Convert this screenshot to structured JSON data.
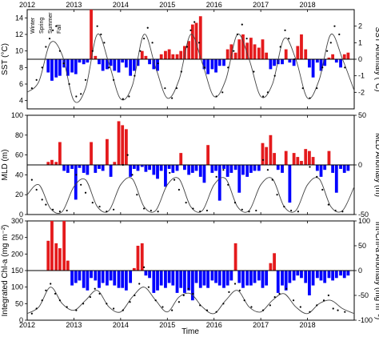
{
  "figure": {
    "x_axis_label": "Time",
    "top_year_labels": [
      "2012",
      "2013",
      "2014",
      "2015",
      "2016",
      "2017",
      "2018"
    ],
    "bottom_year_labels": [
      "2012",
      "2013",
      "2014",
      "2015",
      "2016",
      "2017",
      "2018"
    ],
    "season_labels": [
      "Winter",
      "Spring",
      "Summer",
      "Fall"
    ]
  },
  "chart_data": [
    {
      "type": "bar",
      "panel": "SST",
      "left_ylabel": "SST (°C)",
      "right_ylabel": "SST Anomaly (°C)",
      "left_ylim": [
        3,
        15
      ],
      "left_ticks": [
        4,
        6,
        8,
        10,
        12,
        14
      ],
      "right_ylim": [
        -3,
        3
      ],
      "right_ticks": [
        -2,
        -1,
        0,
        1,
        2
      ],
      "xlim": [
        2012,
        2019
      ],
      "colors": {
        "positive": "#e41a1c",
        "negative": "#0000ff",
        "climatology": "#444444",
        "points": "#000000"
      },
      "anomaly_bars": {
        "x": [
          2012.45,
          2012.53,
          2012.62,
          2012.7,
          2012.79,
          2012.87,
          2012.96,
          2013.04,
          2013.12,
          2013.21,
          2013.29,
          2013.37,
          2013.46,
          2013.54,
          2013.62,
          2013.71,
          2013.79,
          2013.87,
          2013.96,
          2014.04,
          2014.12,
          2014.21,
          2014.29,
          2014.37,
          2014.46,
          2014.54,
          2014.62,
          2014.71,
          2014.79,
          2014.87,
          2014.96,
          2015.04,
          2015.12,
          2015.21,
          2015.29,
          2015.37,
          2015.46,
          2015.54,
          2015.62,
          2015.71,
          2015.79,
          2015.87,
          2015.96,
          2016.04,
          2016.12,
          2016.21,
          2016.29,
          2016.37,
          2016.46,
          2016.54,
          2016.62,
          2016.71,
          2016.79,
          2016.87,
          2016.96,
          2017.04,
          2017.12,
          2017.21,
          2017.29,
          2017.37,
          2017.46,
          2017.54,
          2017.62,
          2017.71,
          2017.79,
          2017.87,
          2017.96,
          2018.04,
          2018.12,
          2018.21,
          2018.29,
          2018.37,
          2018.46,
          2018.54,
          2018.62,
          2018.71,
          2018.79,
          2018.87
        ],
        "values": [
          -0.8,
          -1.3,
          -1.1,
          -1.0,
          -0.5,
          -1.0,
          -0.8,
          -0.9,
          -0.2,
          -0.3,
          -0.2,
          3.0,
          0.2,
          -0.3,
          -0.7,
          -0.6,
          -0.4,
          -0.7,
          -0.8,
          -0.2,
          -0.5,
          -1.0,
          -0.7,
          -0.4,
          0.5,
          0.2,
          -0.3,
          -0.6,
          -0.7,
          0.3,
          0.5,
          0.6,
          0.3,
          0.3,
          0.5,
          0.8,
          1.1,
          2.1,
          2.2,
          2.6,
          -0.6,
          -0.9,
          -0.6,
          -0.8,
          -0.4,
          -0.4,
          0.6,
          0.9,
          0.4,
          1.2,
          1.5,
          1.0,
          1.3,
          0.9,
          0.7,
          1.2,
          0.4,
          -0.6,
          -0.4,
          -0.3,
          -0.3,
          0.6,
          -0.2,
          -0.4,
          0.8,
          1.5,
          0.6,
          -0.5,
          -1.1,
          -0.2,
          -0.7,
          -0.4,
          0.1,
          0.3,
          -0.2,
          -0.5,
          0.3,
          0.4
        ]
      },
      "climatology": {
        "x": [
          2012.0,
          2012.25,
          2012.5,
          2012.75,
          2013.0,
          2013.25,
          2013.5,
          2013.75,
          2014.0,
          2014.25,
          2014.5,
          2014.75,
          2015.0,
          2015.25,
          2015.5,
          2015.75,
          2016.0,
          2016.25,
          2016.5,
          2016.75,
          2017.0,
          2017.25,
          2017.5,
          2017.75,
          2018.0,
          2018.25,
          2018.5,
          2018.75,
          2019.0
        ],
        "values": [
          5.0,
          6.3,
          11.0,
          9.5,
          4.0,
          5.5,
          12.0,
          8.5,
          4.2,
          5.8,
          12.0,
          8.0,
          4.3,
          6.5,
          12.0,
          8.5,
          4.5,
          6.5,
          12.0,
          9.0,
          4.5,
          6.0,
          11.5,
          9.0,
          4.3,
          6.5,
          12.0,
          9.0,
          5.2
        ]
      },
      "observations": {
        "x": [
          2012.1,
          2012.2,
          2012.32,
          2012.4,
          2012.48,
          2012.55,
          2012.62,
          2012.7,
          2012.78,
          2012.9,
          2013.05,
          2013.15,
          2013.25,
          2013.4,
          2013.5,
          2013.58,
          2013.65,
          2013.75,
          2013.85,
          2014.05,
          2014.18,
          2014.3,
          2014.42,
          2014.5,
          2014.58,
          2014.68,
          2014.8,
          2014.95,
          2015.1,
          2015.2,
          2015.3,
          2015.42,
          2015.5,
          2015.58,
          2015.68,
          2015.8,
          2016.05,
          2016.18,
          2016.3,
          2016.42,
          2016.5,
          2016.6,
          2016.7,
          2016.85,
          2017.05,
          2017.15,
          2017.3,
          2017.42,
          2017.52,
          2017.6,
          2017.72,
          2017.9,
          2018.05,
          2018.2,
          2018.32,
          2018.42,
          2018.5,
          2018.58,
          2018.68,
          2018.8
        ],
        "values": [
          5.5,
          6.5,
          8.0,
          10.5,
          11.5,
          12.5,
          13.0,
          10.0,
          8.5,
          6.0,
          4.5,
          4.8,
          6.5,
          10.0,
          13.0,
          12.0,
          11.0,
          8.0,
          6.5,
          4.2,
          4.5,
          7.0,
          10.0,
          11.5,
          12.8,
          11.0,
          8.5,
          5.5,
          4.3,
          5.5,
          7.5,
          10.5,
          12.5,
          13.5,
          11.0,
          8.0,
          4.5,
          5.0,
          8.0,
          10.0,
          12.0,
          13.2,
          11.5,
          7.5,
          4.5,
          5.0,
          7.0,
          10.5,
          12.5,
          11.5,
          9.0,
          5.5,
          4.3,
          5.5,
          8.0,
          10.0,
          11.0,
          13.0,
          12.0,
          8.0
        ]
      }
    },
    {
      "type": "bar",
      "panel": "MLD",
      "left_ylabel": "MLD (m)",
      "right_ylabel": "MLD Anomaly (m)",
      "left_ylim": [
        0,
        100
      ],
      "left_ticks": [
        0,
        20,
        40,
        60,
        80,
        100
      ],
      "right_ylim": [
        -50,
        50
      ],
      "right_ticks": [
        -50,
        0,
        50
      ],
      "xlim": [
        2012,
        2019
      ],
      "colors": {
        "positive": "#e41a1c",
        "negative": "#0000ff",
        "climatology": "#444444",
        "points": "#000000"
      },
      "anomaly_bars": {
        "x": [
          2012.45,
          2012.53,
          2012.62,
          2012.7,
          2012.79,
          2012.87,
          2012.96,
          2013.04,
          2013.12,
          2013.21,
          2013.29,
          2013.37,
          2013.46,
          2013.54,
          2013.62,
          2013.71,
          2013.79,
          2013.87,
          2013.96,
          2014.04,
          2014.12,
          2014.21,
          2014.29,
          2014.37,
          2014.46,
          2014.54,
          2014.62,
          2014.71,
          2014.79,
          2014.87,
          2014.96,
          2015.04,
          2015.12,
          2015.21,
          2015.29,
          2015.37,
          2015.46,
          2015.54,
          2015.62,
          2015.71,
          2015.79,
          2015.87,
          2015.96,
          2016.04,
          2016.12,
          2016.21,
          2016.29,
          2016.37,
          2016.46,
          2016.54,
          2016.62,
          2016.71,
          2016.79,
          2016.87,
          2016.96,
          2017.04,
          2017.12,
          2017.21,
          2017.29,
          2017.37,
          2017.46,
          2017.54,
          2017.62,
          2017.71,
          2017.79,
          2017.87,
          2017.96,
          2018.04,
          2018.12,
          2018.21,
          2018.29,
          2018.37,
          2018.46,
          2018.54,
          2018.62,
          2018.71,
          2018.79,
          2018.87
        ],
        "values": [
          3,
          5,
          3,
          23,
          -6,
          -8,
          -4,
          -35,
          -3,
          -8,
          -10,
          23,
          -8,
          -4,
          -6,
          26,
          -12,
          3,
          44,
          40,
          36,
          -12,
          -4,
          -6,
          -2,
          -7,
          -5,
          -10,
          -14,
          -6,
          -22,
          -4,
          -8,
          -6,
          12,
          -5,
          -10,
          -8,
          -6,
          -12,
          -18,
          20,
          -8,
          -6,
          -36,
          -4,
          -12,
          -8,
          -5,
          -28,
          -10,
          -12,
          -8,
          -6,
          -6,
          22,
          18,
          30,
          12,
          -5,
          -8,
          14,
          -38,
          12,
          8,
          4,
          16,
          14,
          8,
          -6,
          -12,
          -5,
          14,
          -8,
          -28,
          -4,
          -8,
          -6
        ]
      },
      "climatology": {
        "x": [
          2012.0,
          2012.25,
          2012.5,
          2012.75,
          2013.0,
          2013.25,
          2013.5,
          2013.75,
          2014.0,
          2014.25,
          2014.5,
          2014.75,
          2015.0,
          2015.25,
          2015.5,
          2015.75,
          2016.0,
          2016.25,
          2016.5,
          2016.75,
          2017.0,
          2017.25,
          2017.5,
          2017.75,
          2018.0,
          2018.25,
          2018.5,
          2018.75,
          2019.0
        ],
        "values": [
          20,
          30,
          6,
          3,
          28,
          35,
          8,
          4,
          30,
          36,
          8,
          4,
          30,
          36,
          8,
          4,
          30,
          36,
          8,
          4,
          30,
          36,
          8,
          4,
          30,
          36,
          8,
          4,
          28
        ]
      },
      "observations": {
        "x": [
          2012.1,
          2012.2,
          2012.32,
          2012.4,
          2012.55,
          2012.7,
          2012.85,
          2013.05,
          2013.15,
          2013.25,
          2013.4,
          2013.55,
          2013.7,
          2013.85,
          2014.05,
          2014.15,
          2014.25,
          2014.35,
          2014.5,
          2014.65,
          2014.8,
          2015.05,
          2015.15,
          2015.25,
          2015.4,
          2015.55,
          2015.7,
          2015.85,
          2016.05,
          2016.2,
          2016.3,
          2016.45,
          2016.6,
          2016.75,
          2016.9,
          2017.05,
          2017.15,
          2017.25,
          2017.35,
          2017.5,
          2017.65,
          2017.8,
          2018.05,
          2018.2,
          2018.32,
          2018.45,
          2018.6,
          2018.75
        ],
        "values": [
          35,
          25,
          15,
          10,
          5,
          3,
          4,
          40,
          30,
          22,
          12,
          8,
          3,
          5,
          50,
          60,
          40,
          20,
          6,
          4,
          3,
          42,
          35,
          25,
          12,
          6,
          3,
          4,
          38,
          45,
          30,
          12,
          5,
          3,
          4,
          55,
          45,
          35,
          20,
          8,
          4,
          3,
          48,
          38,
          25,
          10,
          4,
          3
        ]
      }
    },
    {
      "type": "bar",
      "panel": "Integrated Chl-a",
      "left_ylabel": "Integrated Chl-a (mg m⁻²)",
      "right_ylabel": "Int-Chl-a Anomaly (mg m⁻²)",
      "left_ylim": [
        0,
        300
      ],
      "left_ticks": [
        0,
        50,
        100,
        150,
        200,
        250,
        300
      ],
      "right_ylim": [
        -100,
        100
      ],
      "right_ticks": [
        -100,
        -50,
        0,
        50,
        100
      ],
      "xlim": [
        2012,
        2019
      ],
      "colors": {
        "positive": "#e41a1c",
        "negative": "#0000ff",
        "climatology": "#444444",
        "points": "#000000"
      },
      "anomaly_bars": {
        "x": [
          2012.45,
          2012.53,
          2012.62,
          2012.7,
          2012.79,
          2012.87,
          2012.96,
          2013.04,
          2013.12,
          2013.21,
          2013.29,
          2013.37,
          2013.46,
          2013.54,
          2013.62,
          2013.71,
          2013.79,
          2013.87,
          2013.96,
          2014.04,
          2014.12,
          2014.21,
          2014.29,
          2014.37,
          2014.46,
          2014.54,
          2014.62,
          2014.71,
          2014.79,
          2014.87,
          2014.96,
          2015.04,
          2015.12,
          2015.21,
          2015.29,
          2015.37,
          2015.46,
          2015.54,
          2015.62,
          2015.71,
          2015.79,
          2015.87,
          2015.96,
          2016.04,
          2016.12,
          2016.21,
          2016.29,
          2016.37,
          2016.46,
          2016.54,
          2016.62,
          2016.71,
          2016.79,
          2016.87,
          2016.96,
          2017.04,
          2017.12,
          2017.21,
          2017.29,
          2017.37,
          2017.46,
          2017.54,
          2017.62,
          2017.71,
          2017.79,
          2017.87,
          2017.96,
          2018.04,
          2018.12,
          2018.21,
          2018.29,
          2018.37,
          2018.46,
          2018.54,
          2018.62,
          2018.71,
          2018.79,
          2018.87
        ],
        "values": [
          60,
          100,
          55,
          45,
          100,
          20,
          -30,
          -25,
          -20,
          -35,
          -40,
          -15,
          -20,
          -35,
          -25,
          -30,
          -20,
          -30,
          -35,
          -35,
          -40,
          -25,
          5,
          50,
          55,
          -10,
          -15,
          -45,
          -40,
          -30,
          -35,
          -25,
          -30,
          -45,
          -35,
          -45,
          -40,
          -60,
          -25,
          -35,
          -30,
          -35,
          -20,
          -25,
          -30,
          -35,
          -30,
          -20,
          55,
          -25,
          -35,
          -30,
          -30,
          -25,
          -20,
          -35,
          -30,
          15,
          35,
          -45,
          -30,
          -40,
          -25,
          -20,
          -10,
          -15,
          -25,
          -50,
          -30,
          -15,
          -20,
          -25,
          -15,
          -20,
          -15,
          -10,
          -15,
          -10
        ]
      },
      "climatology": {
        "x": [
          2012.0,
          2012.25,
          2012.5,
          2012.75,
          2013.0,
          2013.25,
          2013.5,
          2013.75,
          2014.0,
          2014.25,
          2014.5,
          2014.75,
          2015.0,
          2015.25,
          2015.5,
          2015.75,
          2016.0,
          2016.25,
          2016.5,
          2016.75,
          2017.0,
          2017.25,
          2017.5,
          2017.75,
          2018.0,
          2018.25,
          2018.5,
          2018.75,
          2019.0
        ],
        "values": [
          20,
          40,
          100,
          50,
          30,
          60,
          90,
          40,
          25,
          70,
          100,
          60,
          25,
          70,
          80,
          40,
          20,
          60,
          90,
          40,
          25,
          60,
          80,
          40,
          20,
          50,
          60,
          35,
          20
        ]
      },
      "observations": {
        "x": [
          2012.1,
          2012.2,
          2012.32,
          2012.4,
          2012.5,
          2012.6,
          2012.7,
          2012.85,
          2013.05,
          2013.2,
          2013.35,
          2013.45,
          2013.55,
          2013.7,
          2013.85,
          2014.05,
          2014.2,
          2014.3,
          2014.4,
          2014.5,
          2014.6,
          2014.75,
          2014.9,
          2015.1,
          2015.25,
          2015.35,
          2015.45,
          2015.55,
          2015.7,
          2015.85,
          2016.05,
          2016.2,
          2016.32,
          2016.45,
          2016.55,
          2016.65,
          2016.8,
          2017.05,
          2017.2,
          2017.3,
          2017.4,
          2017.55,
          2017.7,
          2017.85,
          2018.05,
          2018.2,
          2018.35,
          2018.45,
          2018.55,
          2018.65,
          2018.8
        ],
        "values": [
          20,
          35,
          60,
          90,
          110,
          80,
          60,
          40,
          30,
          50,
          70,
          95,
          80,
          50,
          35,
          30,
          55,
          75,
          110,
          160,
          100,
          60,
          40,
          30,
          55,
          75,
          95,
          80,
          45,
          30,
          25,
          50,
          85,
          110,
          90,
          60,
          40,
          30,
          45,
          70,
          80,
          95,
          60,
          40,
          25,
          45,
          60,
          75,
          35,
          30,
          25
        ]
      }
    }
  ]
}
